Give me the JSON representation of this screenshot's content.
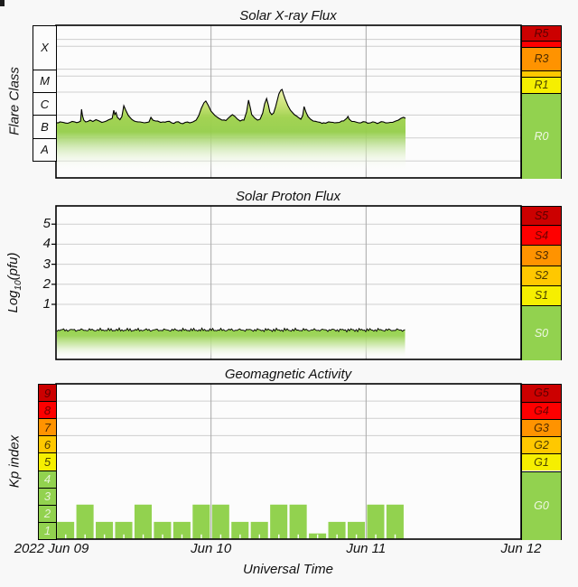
{
  "chart_data": [
    {
      "type": "area",
      "title": "Solar X-ray Flux",
      "ylabel": "Flare Class",
      "flare_classes": [
        "X",
        "M",
        "C",
        "B",
        "A"
      ],
      "x_unit": "hours since 2022 Jun 09 00:00 UT",
      "x_range_days": 3,
      "log10_flux_range": [
        -8.74,
        -2.09
      ],
      "noaa_r_scale": [
        {
          "label": "R5",
          "from": -2.7,
          "to": -2.09,
          "color": "#cc0000",
          "text_color": "#5c0000"
        },
        {
          "label": "",
          "from": -3.0,
          "to": -2.7,
          "color": "#fe0000",
          "text_color": "#6f0000"
        },
        {
          "label": "R3",
          "from": -4.0,
          "to": -3.0,
          "color": "#ff9300",
          "text_color": "#4d2b00"
        },
        {
          "label": "",
          "from": -4.3,
          "to": -4.0,
          "color": "#ffc800",
          "text_color": "#4d3a00"
        },
        {
          "label": "R1",
          "from": -5.0,
          "to": -4.3,
          "color": "#f6ef00",
          "text_color": "#4d4500"
        },
        {
          "label": "R0",
          "from": -8.74,
          "to": -5.0,
          "color": "#92d24f",
          "text_color": "#eff7e3"
        }
      ],
      "series_t_log10flux": [
        [
          0.0,
          -6.33
        ],
        [
          0.6,
          -6.3
        ],
        [
          1.1,
          -6.32
        ],
        [
          1.8,
          -6.36
        ],
        [
          2.5,
          -6.28
        ],
        [
          3.2,
          -6.33
        ],
        [
          3.8,
          -6.26
        ],
        [
          3.95,
          -5.75
        ],
        [
          4.1,
          -6.02
        ],
        [
          4.3,
          -6.22
        ],
        [
          4.6,
          -6.3
        ],
        [
          5.3,
          -6.22
        ],
        [
          5.7,
          -6.28
        ],
        [
          6.2,
          -6.2
        ],
        [
          6.7,
          -6.26
        ],
        [
          7.1,
          -6.32
        ],
        [
          7.8,
          -6.26
        ],
        [
          8.7,
          -6.14
        ],
        [
          8.95,
          -5.79
        ],
        [
          9.1,
          -5.98
        ],
        [
          9.3,
          -5.89
        ],
        [
          9.5,
          -6.1
        ],
        [
          9.9,
          -6.2
        ],
        [
          10.2,
          -6.06
        ],
        [
          10.5,
          -5.59
        ],
        [
          10.8,
          -5.79
        ],
        [
          11.2,
          -6.02
        ],
        [
          11.7,
          -6.18
        ],
        [
          12.3,
          -6.28
        ],
        [
          13.0,
          -6.3
        ],
        [
          13.7,
          -6.34
        ],
        [
          14.4,
          -6.3
        ],
        [
          14.7,
          -6.1
        ],
        [
          15.0,
          -6.22
        ],
        [
          15.4,
          -6.26
        ],
        [
          16.2,
          -6.32
        ],
        [
          17.2,
          -6.28
        ],
        [
          17.9,
          -6.34
        ],
        [
          18.6,
          -6.3
        ],
        [
          19.3,
          -6.36
        ],
        [
          20.0,
          -6.32
        ],
        [
          20.7,
          -6.34
        ],
        [
          21.2,
          -6.3
        ],
        [
          21.7,
          -6.22
        ],
        [
          22.1,
          -6.02
        ],
        [
          22.5,
          -5.71
        ],
        [
          22.9,
          -5.47
        ],
        [
          23.2,
          -5.39
        ],
        [
          23.6,
          -5.59
        ],
        [
          24.0,
          -5.83
        ],
        [
          24.6,
          -6.02
        ],
        [
          25.2,
          -6.14
        ],
        [
          25.7,
          -6.22
        ],
        [
          26.3,
          -6.24
        ],
        [
          26.8,
          -6.1
        ],
        [
          27.3,
          -5.98
        ],
        [
          27.7,
          -6.06
        ],
        [
          28.1,
          -6.18
        ],
        [
          28.5,
          -6.26
        ],
        [
          29.1,
          -6.22
        ],
        [
          29.5,
          -5.87
        ],
        [
          29.8,
          -5.35
        ],
        [
          30.1,
          -5.71
        ],
        [
          30.3,
          -5.98
        ],
        [
          30.8,
          -6.14
        ],
        [
          31.2,
          -6.22
        ],
        [
          31.6,
          -6.18
        ],
        [
          32.0,
          -5.91
        ],
        [
          32.3,
          -5.51
        ],
        [
          32.6,
          -5.28
        ],
        [
          32.9,
          -5.59
        ],
        [
          33.1,
          -5.87
        ],
        [
          33.4,
          -5.98
        ],
        [
          33.7,
          -5.91
        ],
        [
          34.0,
          -5.63
        ],
        [
          34.3,
          -5.31
        ],
        [
          34.5,
          -5.08
        ],
        [
          34.8,
          -4.92
        ],
        [
          35.0,
          -4.88
        ],
        [
          35.2,
          -5.08
        ],
        [
          35.5,
          -5.31
        ],
        [
          35.9,
          -5.59
        ],
        [
          36.3,
          -5.79
        ],
        [
          36.9,
          -5.98
        ],
        [
          37.5,
          -6.1
        ],
        [
          37.9,
          -6.18
        ],
        [
          38.2,
          -6.02
        ],
        [
          38.4,
          -5.63
        ],
        [
          38.7,
          -5.87
        ],
        [
          39.0,
          -6.06
        ],
        [
          39.4,
          -6.18
        ],
        [
          39.8,
          -6.26
        ],
        [
          40.5,
          -6.3
        ],
        [
          41.4,
          -6.34
        ],
        [
          42.2,
          -6.3
        ],
        [
          43.1,
          -6.34
        ],
        [
          43.9,
          -6.32
        ],
        [
          44.5,
          -6.26
        ],
        [
          45.0,
          -6.14
        ],
        [
          45.2,
          -6.06
        ],
        [
          45.4,
          -6.18
        ],
        [
          45.8,
          -6.28
        ],
        [
          46.6,
          -6.32
        ],
        [
          47.2,
          -6.34
        ],
        [
          47.9,
          -6.3
        ],
        [
          48.7,
          -6.34
        ],
        [
          49.4,
          -6.32
        ],
        [
          50.0,
          -6.34
        ],
        [
          50.7,
          -6.3
        ],
        [
          51.4,
          -6.34
        ],
        [
          52.1,
          -6.32
        ],
        [
          52.6,
          -6.26
        ],
        [
          53.0,
          -6.22
        ],
        [
          53.4,
          -6.14
        ],
        [
          53.8,
          -6.1
        ],
        [
          54.1,
          -6.14
        ]
      ]
    },
    {
      "type": "area",
      "title": "Solar Proton Flux",
      "ylabel_parts": [
        "Log",
        "10",
        "(pfu)"
      ],
      "yticks": [
        5,
        4,
        3,
        2,
        1
      ],
      "log10_pfu_range": [
        -1.75,
        5.91
      ],
      "noaa_s_scale": [
        {
          "label": "S5",
          "from": 5.0,
          "to": 5.91,
          "color": "#cc0000",
          "text_color": "#5c0000"
        },
        {
          "label": "S4",
          "from": 4.0,
          "to": 5.0,
          "color": "#fe0000",
          "text_color": "#6f0000"
        },
        {
          "label": "S3",
          "from": 3.0,
          "to": 4.0,
          "color": "#ff9300",
          "text_color": "#4d2b00"
        },
        {
          "label": "S2",
          "from": 2.0,
          "to": 3.0,
          "color": "#ffc800",
          "text_color": "#4d3a00"
        },
        {
          "label": "S1",
          "from": 1.0,
          "to": 2.0,
          "color": "#f6ef00",
          "text_color": "#4d4500"
        },
        {
          "label": "S0",
          "from": -1.75,
          "to": 1.0,
          "color": "#92d24f",
          "text_color": "#eff7e3"
        }
      ],
      "series": {
        "t_start": 0,
        "t_end": 54.1,
        "log10_level": -0.28,
        "noise_amplitude": 0.06
      }
    },
    {
      "type": "bar",
      "title": "Geomagnetic Activity",
      "ylabel": "Kp index",
      "bar_width_hours": 3,
      "bar_color": "#92d24f",
      "kp_values": [
        1,
        2,
        1,
        1,
        2,
        1,
        1,
        2,
        2,
        1,
        1,
        2,
        2,
        0.33,
        1,
        1,
        2,
        2
      ],
      "kp_axis_boxes": [
        {
          "label": "9",
          "color": "#cc0000",
          "text_color": "#5c0000"
        },
        {
          "label": "8",
          "color": "#fe0000",
          "text_color": "#6f0000"
        },
        {
          "label": "7",
          "color": "#ff9300",
          "text_color": "#4d2b00"
        },
        {
          "label": "6",
          "color": "#ffc800",
          "text_color": "#4d3a00"
        },
        {
          "label": "5",
          "color": "#f6ef00",
          "text_color": "#4d4500"
        },
        {
          "label": "4",
          "color": "#92d24f",
          "text_color": "#e6f3d5"
        },
        {
          "label": "3",
          "color": "#92d24f",
          "text_color": "#e6f3d5"
        },
        {
          "label": "2",
          "color": "#92d24f",
          "text_color": "#e6f3d5"
        },
        {
          "label": "1",
          "color": "#92d24f",
          "text_color": "#e6f3d5"
        }
      ],
      "noaa_g_scale": [
        {
          "label": "G5",
          "from": 8,
          "to": 9,
          "color": "#cc0000",
          "text_color": "#5c0000"
        },
        {
          "label": "G4",
          "from": 7,
          "to": 8,
          "color": "#fe0000",
          "text_color": "#6f0000"
        },
        {
          "label": "G3",
          "from": 6,
          "to": 7,
          "color": "#ff9300",
          "text_color": "#4d2b00"
        },
        {
          "label": "G2",
          "from": 5,
          "to": 6,
          "color": "#ffc800",
          "text_color": "#4d3a00"
        },
        {
          "label": "G1",
          "from": 4,
          "to": 5,
          "color": "#f6ef00",
          "text_color": "#4d4500"
        },
        {
          "label": "G0",
          "from": 0,
          "to": 4,
          "color": "#92d24f",
          "text_color": "#eff7e3"
        }
      ]
    }
  ],
  "xaxis": {
    "label": "Universal Time",
    "ticks": [
      {
        "label": "2022 Jun 09",
        "day": 0
      },
      {
        "label": "Jun 10",
        "day": 1
      },
      {
        "label": "Jun 11",
        "day": 2
      },
      {
        "label": "Jun 12",
        "day": 3
      }
    ]
  }
}
